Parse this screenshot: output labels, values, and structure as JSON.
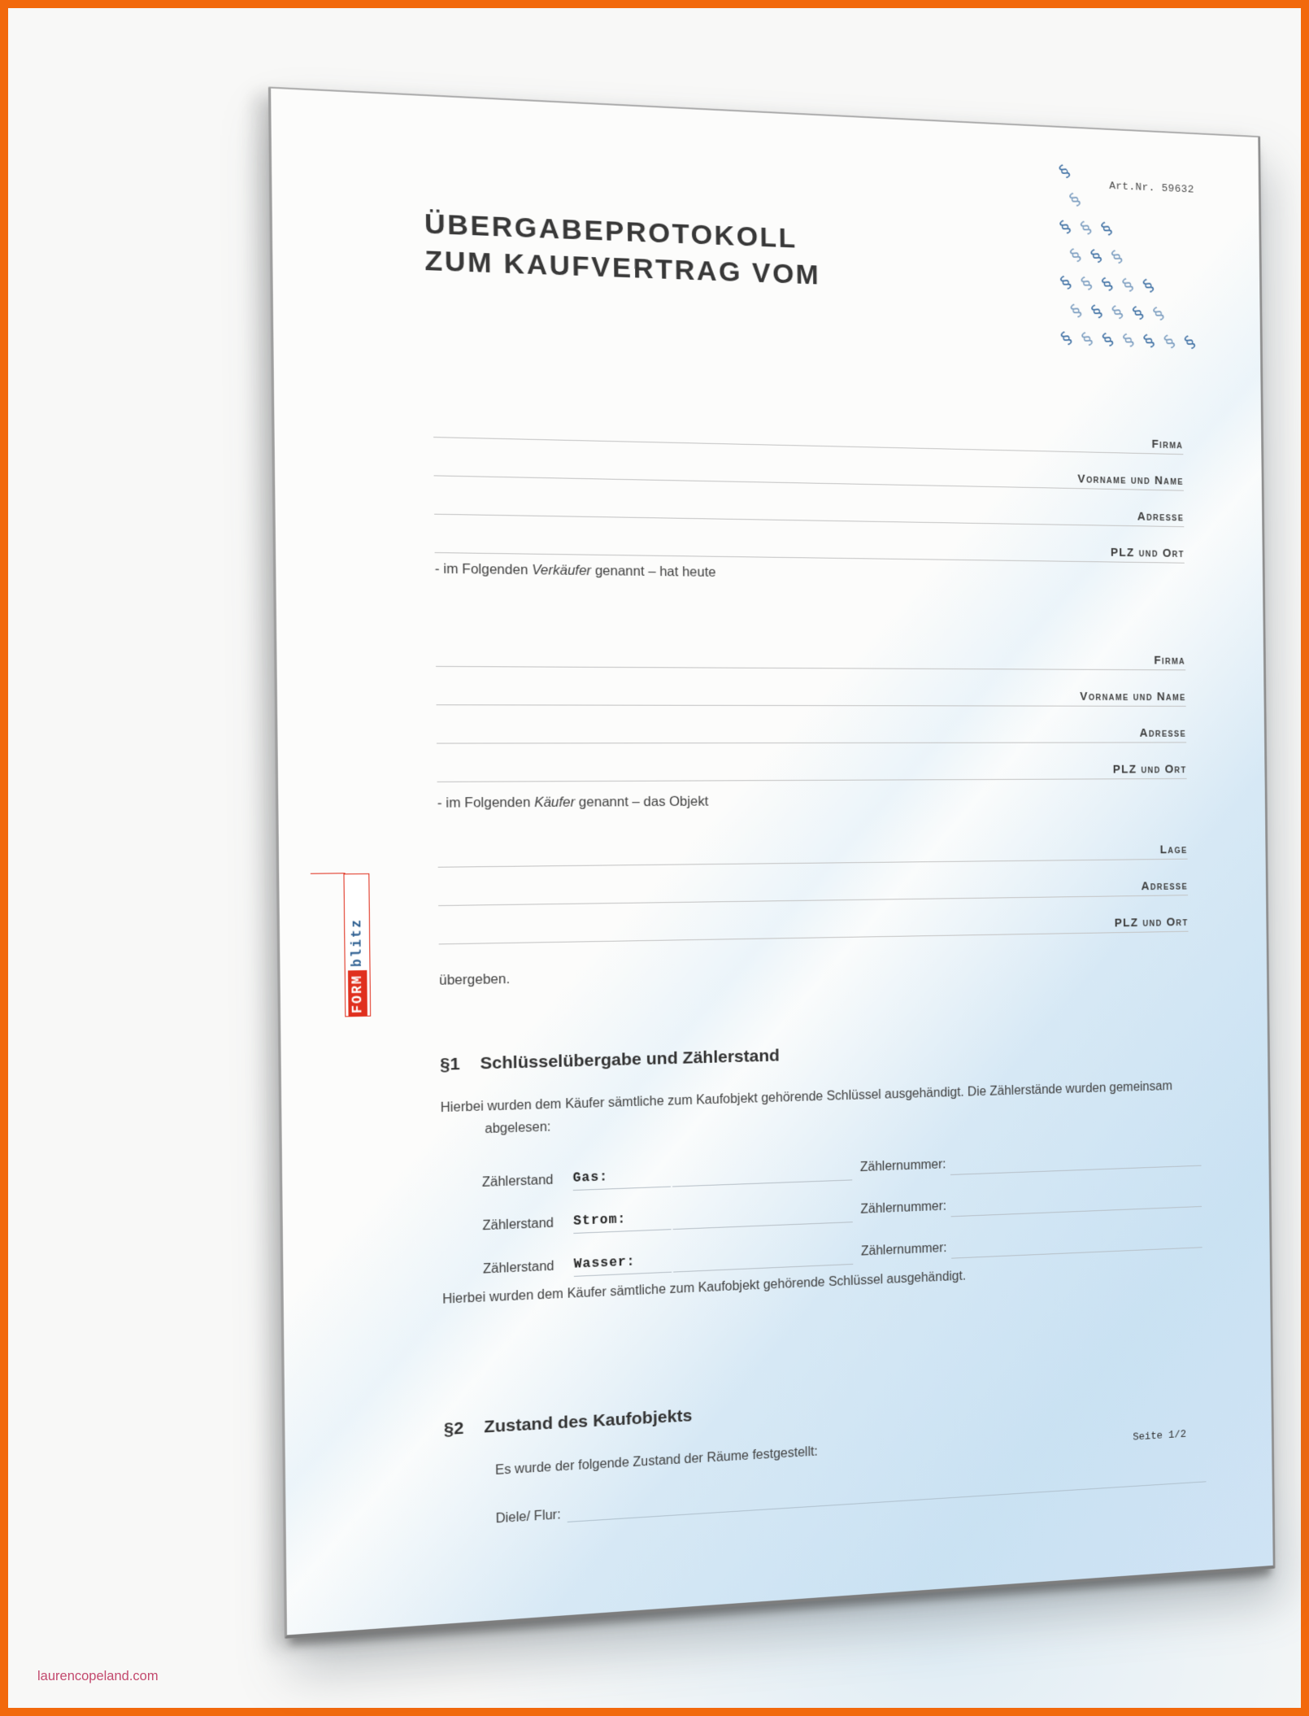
{
  "page": {
    "art_nr": "Art.Nr. 59632",
    "title_line1": "ÜBERGABEPROTOKOLL",
    "title_line2": "ZUM KAUFVERTRAG VOM",
    "seller_fields": [
      "Firma",
      "Vorname und Name",
      "Adresse",
      "PLZ und Ort"
    ],
    "buyer_fields": [
      "Firma",
      "Vorname und Name",
      "Adresse",
      "PLZ und Ort"
    ],
    "object_fields": [
      "Lage",
      "Adresse",
      "PLZ und Ort"
    ],
    "seller_note": {
      "prefix": "- im Folgenden ",
      "italic": "Verkäufer",
      "suffix": " genannt – hat heute"
    },
    "buyer_note": {
      "prefix": "- im Folgenden ",
      "italic": "Käufer",
      "suffix": " genannt – das Objekt"
    },
    "handover_word": "übergeben.",
    "logo": {
      "form": "FORM",
      "blitz": "blitz"
    },
    "section1": {
      "num": "§1",
      "title": "Schlüsselübergabe und Zählerstand",
      "intro": "Hierbei wurden dem Käufer sämtliche zum Kaufobjekt gehörende Schlüssel ausgehändigt. Die Zählerstände wurden gemeinsam abgelesen:",
      "meters": [
        {
          "label": "Zählerstand",
          "type": "Gas:",
          "num": "Zählernummer:"
        },
        {
          "label": "Zählerstand",
          "type": "Strom:",
          "num": "Zählernummer:"
        },
        {
          "label": "Zählerstand",
          "type": "Wasser:",
          "num": "Zählernummer:"
        }
      ],
      "outro": "Hierbei wurden dem Käufer sämtliche zum Kaufobjekt gehörende Schlüssel ausgehändigt."
    },
    "section2": {
      "num": "§2",
      "title": "Zustand des Kaufobjekts",
      "intro": "Es wurde der folgende Zustand der Räume festgestellt:",
      "room_label": "Diele/ Flur:"
    },
    "footer_page": "Seite 1/2"
  },
  "pattern": {
    "char": "§",
    "rows": 7,
    "cols": 8
  },
  "watermark_url": "laurencopeland.com",
  "colors": {
    "frame_orange": "#f2690d",
    "pattern_blue": "#3d6fa3",
    "logo_red": "#e0301e",
    "logo_blue": "#2d5f91",
    "watermark_pink": "#c34a6e",
    "page_blue": "#cfe3f4"
  }
}
